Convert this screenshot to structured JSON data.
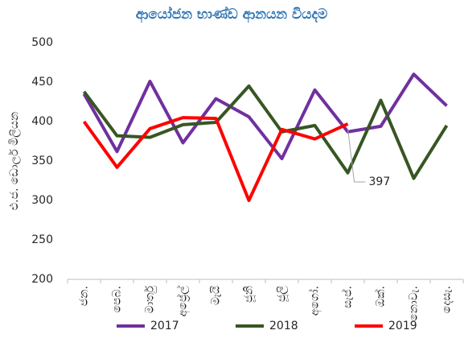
{
  "chart_data": {
    "type": "line",
    "title": "ආයෝජන භාණ්ඩ ආනයන වියදම",
    "ylabel": "එ.ජ. ඩොලර් මිලියන",
    "categories": [
      "ජන.",
      "පෙබ.",
      "මාර්තු",
      "අප්‍රේල්",
      "මැයි",
      "ජූනි",
      "ජූලි",
      "අගෝ.",
      "සැප්.",
      "ඔක්.",
      "නොවැ.",
      "දෙසැ."
    ],
    "series": [
      {
        "name": "2017",
        "color": "#7030a0",
        "values": [
          435,
          362,
          451,
          373,
          429,
          406,
          353,
          440,
          387,
          394,
          460,
          420
        ]
      },
      {
        "name": "2018",
        "color": "#375623",
        "values": [
          438,
          382,
          380,
          396,
          399,
          445,
          387,
          395,
          335,
          427,
          328,
          395
        ]
      },
      {
        "name": "2019",
        "color": "#ff0000",
        "values": [
          400,
          342,
          391,
          405,
          404,
          300,
          390,
          378,
          397,
          null,
          null,
          null
        ],
        "value_labels": [
          null,
          null,
          null,
          null,
          null,
          null,
          null,
          null,
          "397",
          null,
          null,
          null
        ]
      }
    ],
    "ylim": [
      200,
      500
    ],
    "yticks": [
      200,
      250,
      300,
      350,
      400,
      450,
      500
    ],
    "grid": false,
    "legend": "bottom"
  }
}
